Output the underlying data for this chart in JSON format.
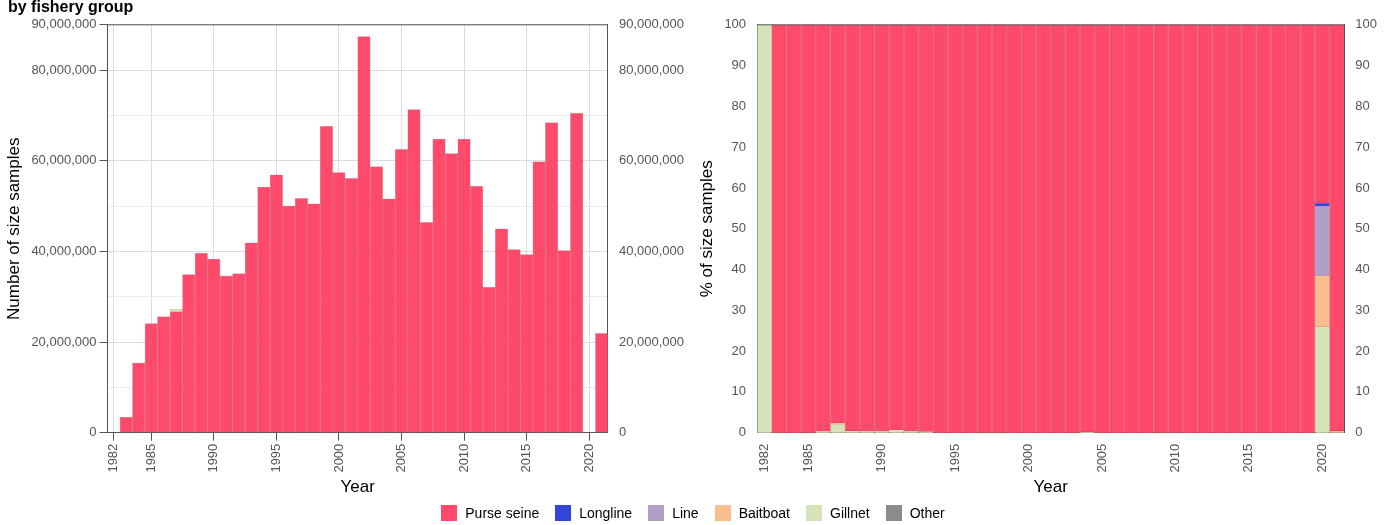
{
  "chart_data": [
    {
      "type": "bar",
      "title": "by fishery group",
      "xlabel": "Year",
      "ylabel": "Number of size samples",
      "stacked": true,
      "grid": true,
      "categories": [
        "1982",
        null,
        null,
        "1985",
        null,
        null,
        null,
        null,
        "1990",
        null,
        null,
        null,
        null,
        "1995",
        null,
        null,
        null,
        null,
        "2000",
        null,
        null,
        null,
        null,
        "2005",
        null,
        null,
        null,
        null,
        "2010",
        null,
        null,
        null,
        null,
        "2015",
        null,
        null,
        null,
        null,
        "2020",
        null
      ],
      "series": [
        {
          "color": "#ff4a6b",
          "values": [
            null,
            3400000,
            15400000,
            24100000,
            25600000,
            26700000,
            34900000,
            39600000,
            38300000,
            34600000,
            35100000,
            41900000,
            54200000,
            56900000,
            50000000,
            51700000,
            50500000,
            67600000,
            57400000,
            56100000,
            87400000,
            58700000,
            51600000,
            62500000,
            71300000,
            46400000,
            64800000,
            61600000,
            64800000,
            54400000,
            32100000,
            45000000,
            40400000,
            39300000,
            59800000,
            68400000,
            40200000,
            70500000,
            null,
            21900000
          ]
        },
        {
          "color": "#d6e2b8",
          "values": [
            null,
            null,
            null,
            null,
            null,
            600000,
            null,
            null,
            null,
            null,
            null,
            null,
            null,
            null,
            null,
            null,
            null,
            null,
            null,
            null,
            null,
            null,
            null,
            null,
            null,
            null,
            null,
            null,
            null,
            null,
            null,
            null,
            null,
            null,
            null,
            null,
            null,
            null,
            null,
            null
          ]
        }
      ],
      "ylim": [
        0,
        90000000
      ],
      "yticks": [
        {
          "value": 0,
          "label": "0"
        },
        {
          "value": 10000000,
          "label": null
        },
        {
          "value": 20000000,
          "label": "20,000,000"
        },
        {
          "value": 30000000,
          "label": null
        },
        {
          "value": 40000000,
          "label": "40,000,000"
        },
        {
          "value": 50000000,
          "label": null
        },
        {
          "value": 60000000,
          "label": "60,000,000"
        },
        {
          "value": 70000000,
          "label": null
        },
        {
          "value": 80000000,
          "label": "80,000,000"
        },
        {
          "value": 90000000,
          "label": "90,000,000"
        }
      ],
      "y2lim": [
        0,
        90000000
      ],
      "y2ticks": [
        {
          "value": 0,
          "label": "0"
        },
        {
          "value": 20000000,
          "label": "20,000,000"
        },
        {
          "value": 40000000,
          "label": "40,000,000"
        },
        {
          "value": 60000000,
          "label": "60,000,000"
        },
        {
          "value": 80000000,
          "label": "80,000,000"
        },
        {
          "value": 90000000,
          "label": "90,000,000"
        }
      ]
    },
    {
      "type": "bar",
      "xlabel": "Year",
      "ylabel": "% of size samples",
      "stacked": true,
      "legend": "bottom",
      "categories": [
        "1982",
        null,
        null,
        "1985",
        null,
        null,
        null,
        null,
        "1990",
        null,
        null,
        null,
        null,
        "1995",
        null,
        null,
        null,
        null,
        "2000",
        null,
        null,
        null,
        null,
        "2005",
        null,
        null,
        null,
        null,
        "2010",
        null,
        null,
        null,
        null,
        "2015",
        null,
        null,
        null,
        null,
        "2020",
        null
      ],
      "series": [
        {
          "name": "Other",
          "color": "#8c8c8c",
          "values": [
            null,
            null,
            null,
            null,
            null,
            null,
            null,
            null,
            null,
            null,
            null,
            null,
            null,
            null,
            null,
            null,
            null,
            null,
            null,
            null,
            null,
            null,
            null,
            null,
            null,
            null,
            null,
            null,
            null,
            null,
            null,
            null,
            null,
            null,
            null,
            null,
            null,
            null,
            null,
            null
          ]
        },
        {
          "name": "Gillnet",
          "color": "#d6e2b8",
          "values": [
            100,
            null,
            null,
            null,
            0.4,
            2,
            0.5,
            0.4,
            0.4,
            0.7,
            0.4,
            0.3,
            null,
            null,
            null,
            null,
            null,
            null,
            null,
            null,
            null,
            null,
            0.2,
            null,
            null,
            null,
            null,
            null,
            null,
            null,
            null,
            null,
            null,
            null,
            null,
            null,
            null,
            null,
            26,
            null
          ]
        },
        {
          "name": "Baitboat",
          "color": "#f8bf8c",
          "values": [
            null,
            null,
            null,
            null,
            null,
            0.4,
            null,
            null,
            null,
            null,
            null,
            null,
            null,
            null,
            null,
            null,
            null,
            null,
            null,
            null,
            null,
            null,
            null,
            null,
            null,
            null,
            null,
            null,
            null,
            null,
            null,
            null,
            null,
            null,
            null,
            null,
            null,
            null,
            12.5,
            0.5
          ]
        },
        {
          "name": "Line",
          "color": "#b0a0c8",
          "values": [
            null,
            null,
            null,
            null,
            null,
            null,
            null,
            null,
            null,
            null,
            null,
            null,
            null,
            null,
            null,
            null,
            null,
            null,
            null,
            null,
            null,
            null,
            null,
            null,
            null,
            null,
            null,
            null,
            null,
            null,
            null,
            null,
            null,
            null,
            null,
            null,
            null,
            null,
            17,
            null
          ]
        },
        {
          "name": "Longline",
          "color": "#3344dd",
          "values": [
            null,
            null,
            null,
            null,
            null,
            null,
            null,
            null,
            null,
            null,
            null,
            null,
            null,
            null,
            null,
            null,
            null,
            null,
            null,
            null,
            null,
            null,
            null,
            null,
            null,
            null,
            null,
            null,
            null,
            null,
            null,
            null,
            null,
            null,
            null,
            null,
            null,
            null,
            0.8,
            null
          ]
        },
        {
          "name": "Purse seine",
          "color": "#ff4a6b",
          "values": [
            null,
            100,
            100,
            100,
            99.6,
            97.6,
            99.5,
            99.6,
            99.6,
            99.3,
            99.6,
            99.7,
            100,
            100,
            100,
            100,
            100,
            100,
            100,
            100,
            100,
            100,
            99.8,
            100,
            100,
            100,
            100,
            100,
            100,
            100,
            100,
            100,
            100,
            100,
            100,
            100,
            100,
            100,
            43.7,
            99.5
          ]
        }
      ],
      "ylim": [
        0,
        100
      ],
      "yticks": [
        0,
        10,
        20,
        30,
        40,
        50,
        60,
        70,
        80,
        90,
        100
      ],
      "y2lim": [
        0,
        100
      ],
      "y2ticks": [
        0,
        10,
        20,
        30,
        40,
        50,
        60,
        70,
        80,
        90,
        100
      ]
    }
  ]
}
